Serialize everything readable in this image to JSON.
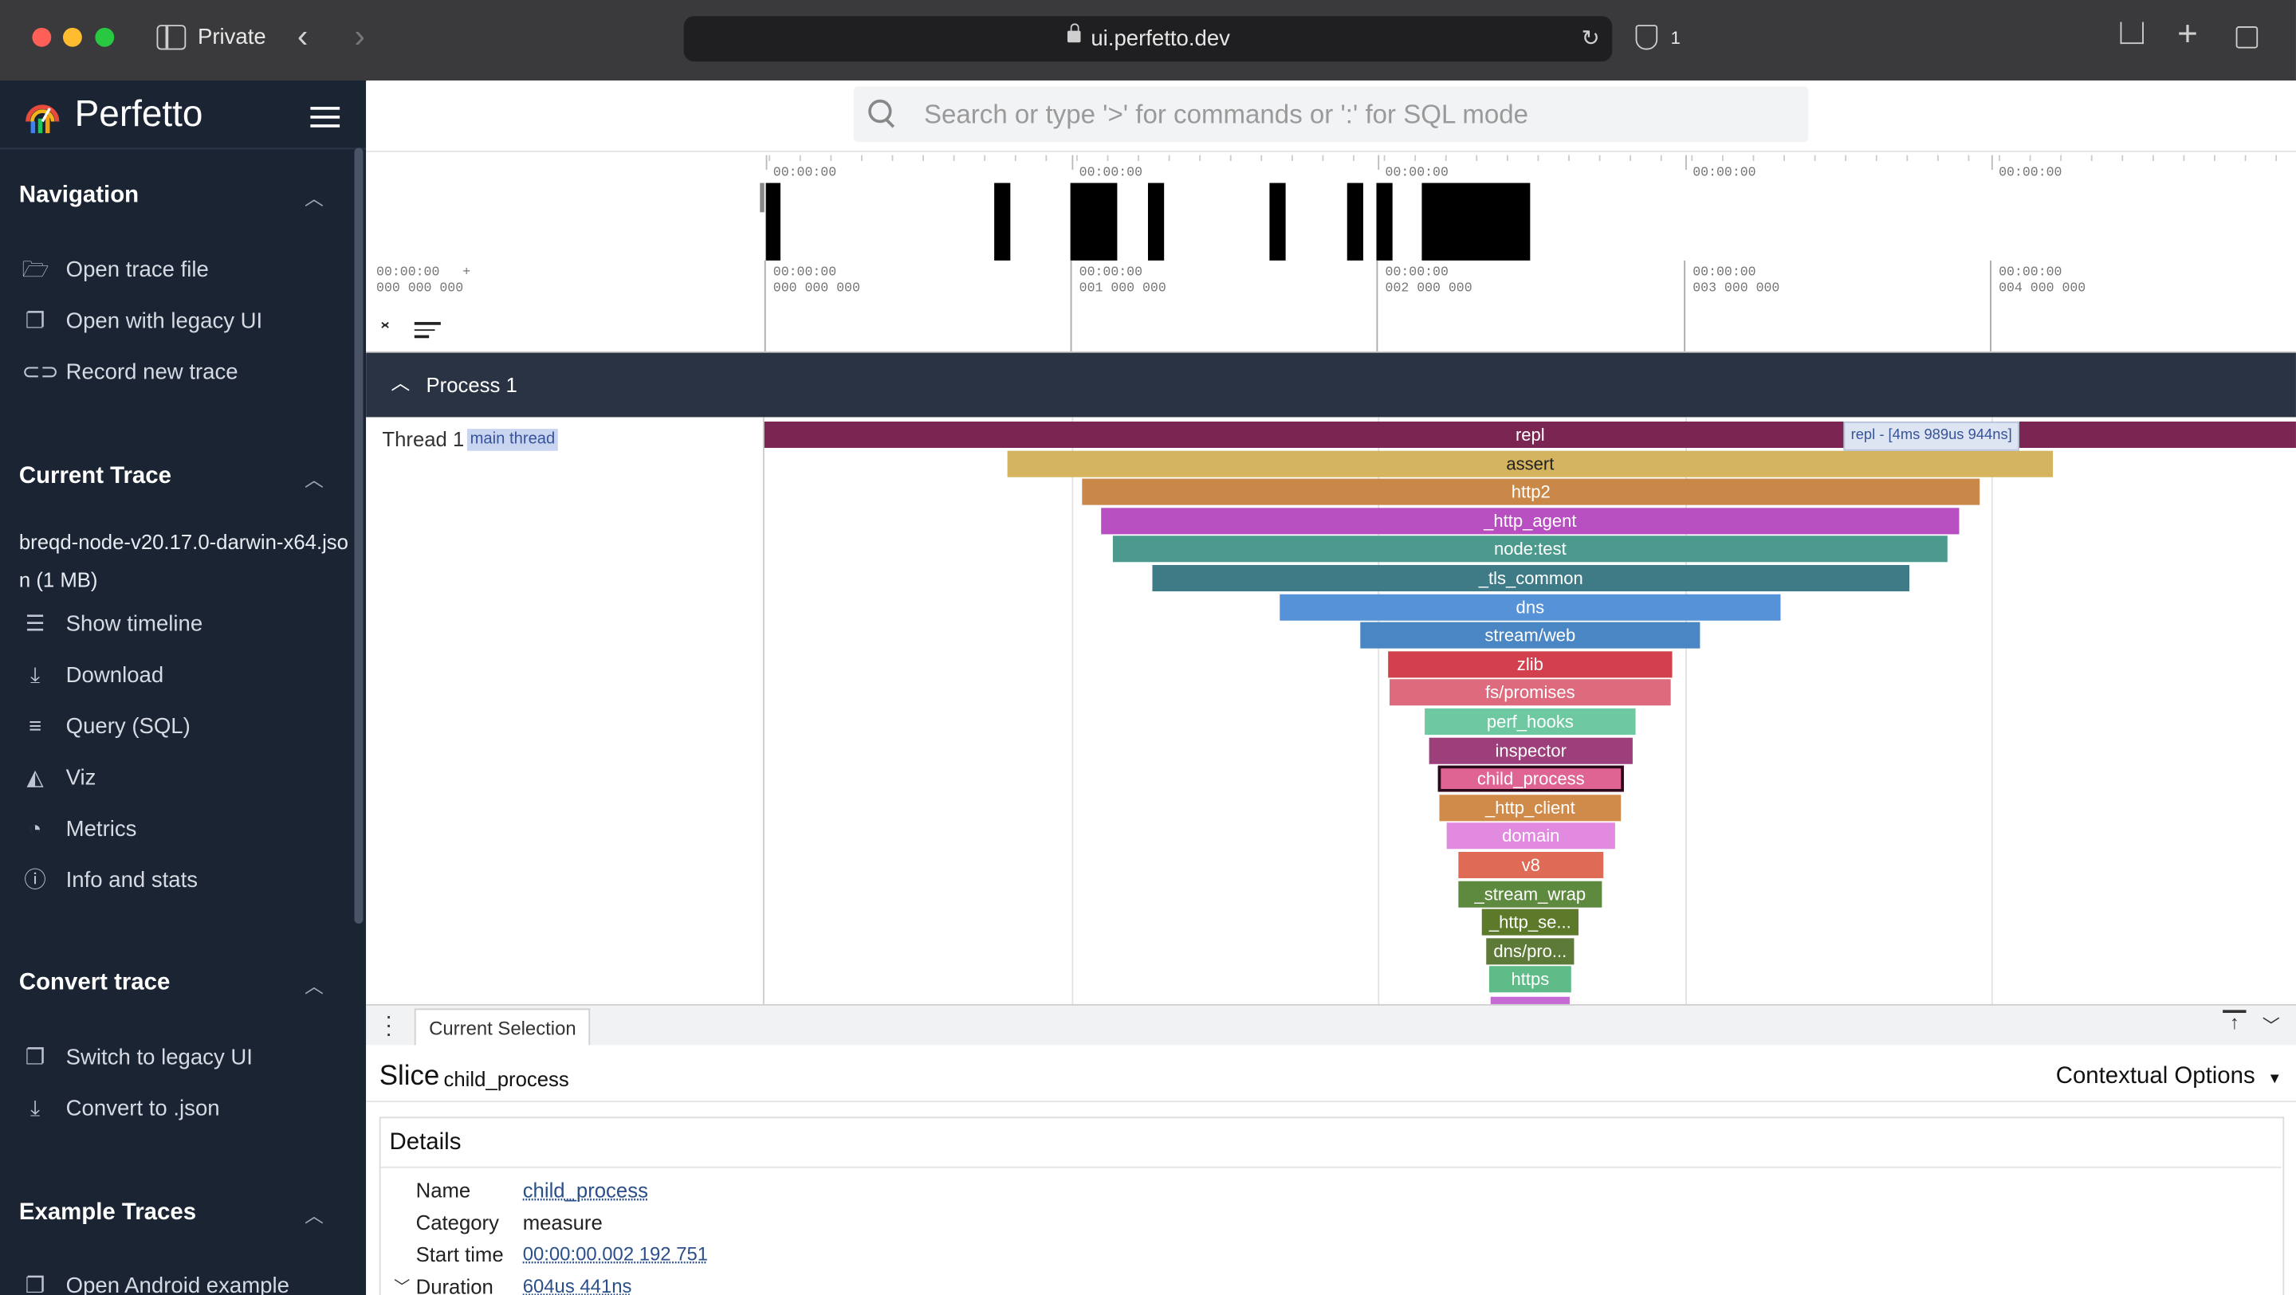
{
  "browser": {
    "private_label": "Private",
    "url": "ui.perfetto.dev",
    "shield_count": "1"
  },
  "sidebar": {
    "logo_text": "Perfetto",
    "sections": {
      "navigation": {
        "title": "Navigation",
        "items": [
          "Open trace file",
          "Open with legacy UI",
          "Record new trace"
        ]
      },
      "current_trace": {
        "title": "Current Trace",
        "file_name_line1": "breqd-node-v20.17.0-darwin-x64.jso",
        "file_name_line2": "n (1 MB)",
        "items": [
          "Show timeline",
          "Download",
          "Query (SQL)",
          "Viz",
          "Metrics",
          "Info and stats"
        ]
      },
      "convert_trace": {
        "title": "Convert trace",
        "items": [
          "Switch to legacy UI",
          "Convert to .json"
        ]
      },
      "example_traces": {
        "title": "Example Traces",
        "items": [
          "Open Android example"
        ]
      }
    }
  },
  "search": {
    "placeholder": "Search or type '>' for commands or ':' for SQL mode"
  },
  "overview_ticks": [
    "00:00:00",
    "00:00:00",
    "00:00:00",
    "00:00:00",
    "00:00:00"
  ],
  "timeline_ticks": [
    {
      "top": "00:00:00",
      "bottom": "000 000 000"
    },
    {
      "top": "00:00:00",
      "bottom": "000 000 000"
    },
    {
      "top": "00:00:00",
      "bottom": "001 000 000"
    },
    {
      "top": "00:00:00",
      "bottom": "002 000 000"
    },
    {
      "top": "00:00:00",
      "bottom": "003 000 000"
    },
    {
      "top": "00:00:00",
      "bottom": "004 000 000"
    }
  ],
  "track": {
    "process_label": "Process 1",
    "thread_label": "Thread 1",
    "thread_badge": "main thread",
    "hover_label": "repl - [4ms 989us 944ns]"
  },
  "slices": [
    "repl",
    "assert",
    "http2",
    "_http_agent",
    "node:test",
    "_tls_common",
    "dns",
    "stream/web",
    "zlib",
    "fs/promises",
    "perf_hooks",
    "inspector",
    "child_process",
    "_http_client",
    "domain",
    "v8",
    "_stream_wrap",
    "_http_se...",
    "dns/pro...",
    "https"
  ],
  "slice_colors": [
    "#7a2552",
    "#d4b45e",
    "#c98848",
    "#b84fc0",
    "#4c9a8e",
    "#3e7b86",
    "#5592d8",
    "#4a86c4",
    "#d2404e",
    "#dd6a7d",
    "#6ec9a2",
    "#9c3f7a",
    "#e06493",
    "#d08a4a",
    "#e28ae0",
    "#df6a55",
    "#5d8a3e",
    "#5c7a2a",
    "#5d7a38",
    "#5fbc88"
  ],
  "bottom_panel": {
    "tab_label": "Current Selection",
    "slice_title": "Slice",
    "slice_name": "child_process",
    "contextual_options": "Contextual Options",
    "details_title": "Details",
    "fields": [
      {
        "label": "Name",
        "value": "child_process"
      },
      {
        "label": "Category",
        "value": "measure"
      },
      {
        "label": "Start time",
        "value": "00:00:00.002 192 751"
      },
      {
        "label": "Duration",
        "value": "604us 441ns"
      }
    ]
  }
}
